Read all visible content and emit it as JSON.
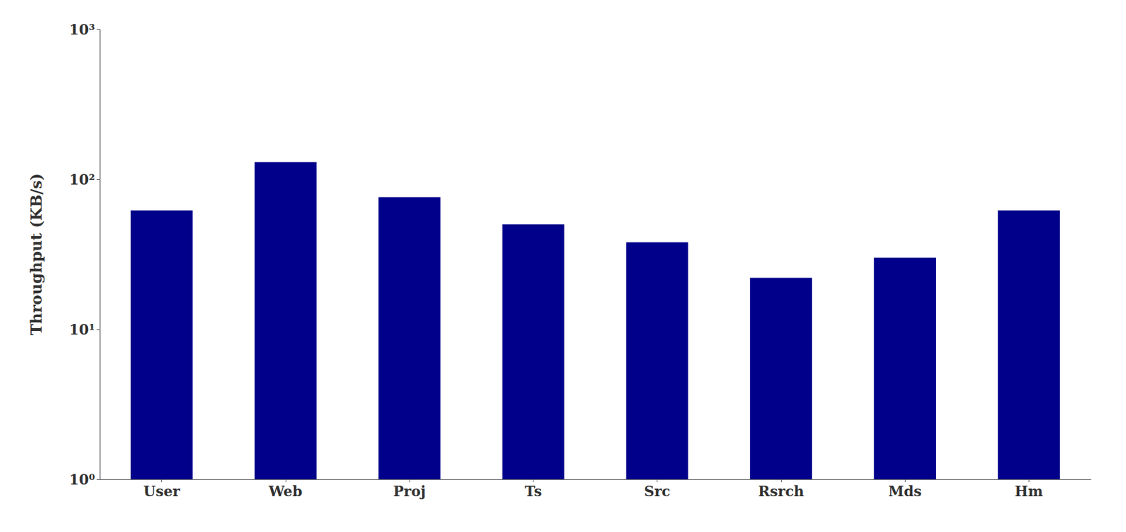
{
  "chart_data": {
    "type": "bar",
    "categories": [
      "User",
      "Web",
      "Proj",
      "Ts",
      "Src",
      "Rsrch",
      "Mds",
      "Hm"
    ],
    "values": [
      62,
      130,
      76,
      50,
      38,
      22,
      30,
      62
    ],
    "color": "#00008B",
    "ylabel": "Throughput (KB/s)",
    "log": "y",
    "ylim": [
      1,
      1000
    ],
    "yticks": [
      {
        "value": 1,
        "label": "10⁰"
      },
      {
        "value": 10,
        "label": "10¹"
      },
      {
        "value": 100,
        "label": "10²"
      },
      {
        "value": 1000,
        "label": "10³"
      }
    ],
    "grid": false
  }
}
